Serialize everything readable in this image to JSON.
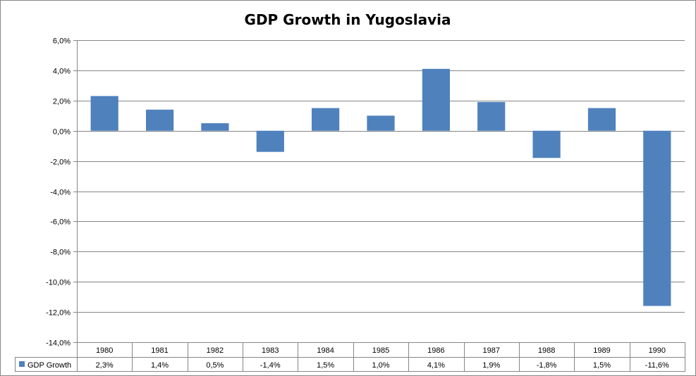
{
  "chart_data": {
    "type": "bar",
    "title": "GDP Growth in Yugoslavia",
    "categories": [
      "1980",
      "1981",
      "1982",
      "1983",
      "1984",
      "1985",
      "1986",
      "1987",
      "1988",
      "1989",
      "1990"
    ],
    "series": [
      {
        "name": "GDP Growth",
        "color": "#4f81bd",
        "values": [
          2.3,
          1.4,
          0.5,
          -1.4,
          1.5,
          1.0,
          4.1,
          1.9,
          -1.8,
          1.5,
          -11.6
        ],
        "labels": [
          "2,3%",
          "1,4%",
          "0,5%",
          "-1,4%",
          "1,5%",
          "1,0%",
          "4,1%",
          "1,9%",
          "-1,8%",
          "1,5%",
          "-11,6%"
        ]
      }
    ],
    "ylim": [
      -14,
      6
    ],
    "yticks": [
      6,
      4,
      2,
      0,
      -2,
      -4,
      -6,
      -8,
      -10,
      -12,
      -14
    ],
    "ytick_labels": [
      "6,0%",
      "4,0%",
      "2,0%",
      "0,0%",
      "-2,0%",
      "-4,0%",
      "-6,0%",
      "-8,0%",
      "-10,0%",
      "-12,0%",
      "-14,0%"
    ],
    "xlabel": "",
    "ylabel": "",
    "grid": true,
    "legend": "data-table-left",
    "data_table": true
  }
}
